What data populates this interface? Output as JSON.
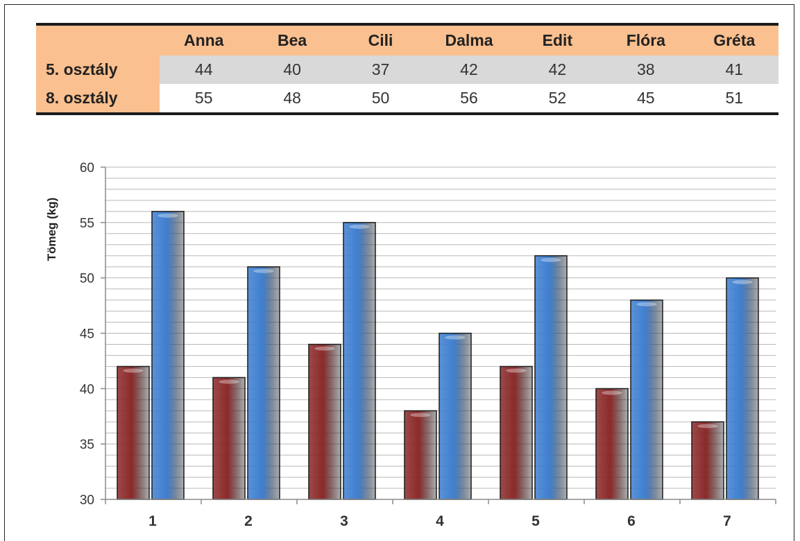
{
  "table": {
    "corner": "",
    "columns": [
      "Anna",
      "Bea",
      "Cili",
      "Dalma",
      "Edit",
      "Flóra",
      "Gréta"
    ],
    "rows": [
      {
        "label": "5. osztály",
        "values": [
          "44",
          "40",
          "37",
          "42",
          "42",
          "38",
          "41"
        ]
      },
      {
        "label": "8. osztály",
        "values": [
          "55",
          "48",
          "50",
          "56",
          "52",
          "45",
          "51"
        ]
      }
    ],
    "colors": {
      "header_bg": "#fbc08f",
      "row5_bg": "#d9d9d9",
      "row8_bg": "#ffffff"
    }
  },
  "chart_data": {
    "type": "bar",
    "categories": [
      "1",
      "2",
      "3",
      "4",
      "5",
      "6",
      "7"
    ],
    "series": [
      {
        "color": "#8b2a2a",
        "values": [
          42,
          41,
          44,
          38,
          42,
          40,
          37
        ]
      },
      {
        "color": "#3f7fd0",
        "values": [
          56,
          51,
          55,
          45,
          52,
          48,
          50
        ]
      }
    ],
    "ylabel": "Tömeg (kg)",
    "ylim": [
      30,
      60
    ],
    "yticks": [
      "30",
      "35",
      "40",
      "45",
      "50",
      "55",
      "60"
    ],
    "minor_gridline_step": 1,
    "grid": true,
    "legend": "none"
  }
}
